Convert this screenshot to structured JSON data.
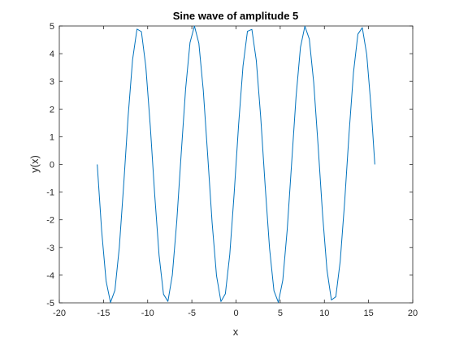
{
  "chart_data": {
    "type": "line",
    "title": "Sine wave of amplitude 5",
    "xlabel": "x",
    "ylabel": "y(x)",
    "xlim": [
      -20,
      20
    ],
    "ylim": [
      -5,
      5
    ],
    "xticks": [
      "-20",
      "-15",
      "-10",
      "-5",
      "0",
      "5",
      "10",
      "15",
      "20"
    ],
    "yticks": [
      "-5",
      "-4",
      "-3",
      "-2",
      "-1",
      "0",
      "1",
      "2",
      "3",
      "4",
      "5"
    ],
    "grid": false,
    "series": [
      {
        "color": "#0072BD",
        "function": "y = 5*sin(x)",
        "x_range": [
          -15.708,
          15.708
        ],
        "sample_step": 0.5
      }
    ]
  }
}
